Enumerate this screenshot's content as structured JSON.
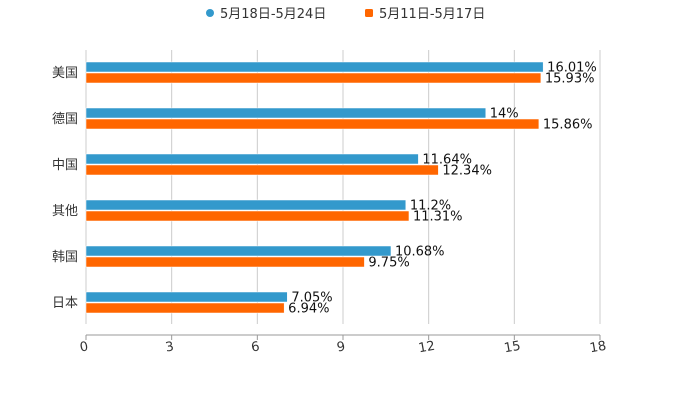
{
  "chart_data": {
    "type": "bar",
    "orientation": "horizontal",
    "title": "",
    "categories": [
      "美国",
      "德国",
      "中国",
      "其他",
      "韩国",
      "日本"
    ],
    "series": [
      {
        "name": "5月18日-5月24日",
        "color": "#3399CC",
        "values": [
          16.01,
          14,
          11.64,
          11.2,
          10.68,
          7.05
        ],
        "labels": [
          "16.01%",
          "14%",
          "11.64%",
          "11.2%",
          "10.68%",
          "7.05%"
        ]
      },
      {
        "name": "5月11日-5月17日",
        "color": "#FF6600",
        "values": [
          15.93,
          15.86,
          12.34,
          11.31,
          9.75,
          6.94
        ],
        "labels": [
          "15.93%",
          "15.86%",
          "12.34%",
          "11.31%",
          "9.75%",
          "6.94%"
        ]
      }
    ],
    "xlim": [
      0,
      18
    ],
    "xticks": [
      "0",
      "3",
      "6",
      "9",
      "12",
      "15",
      "18"
    ],
    "grid": true,
    "legend": "top-center",
    "xlabel": "",
    "ylabel": ""
  }
}
